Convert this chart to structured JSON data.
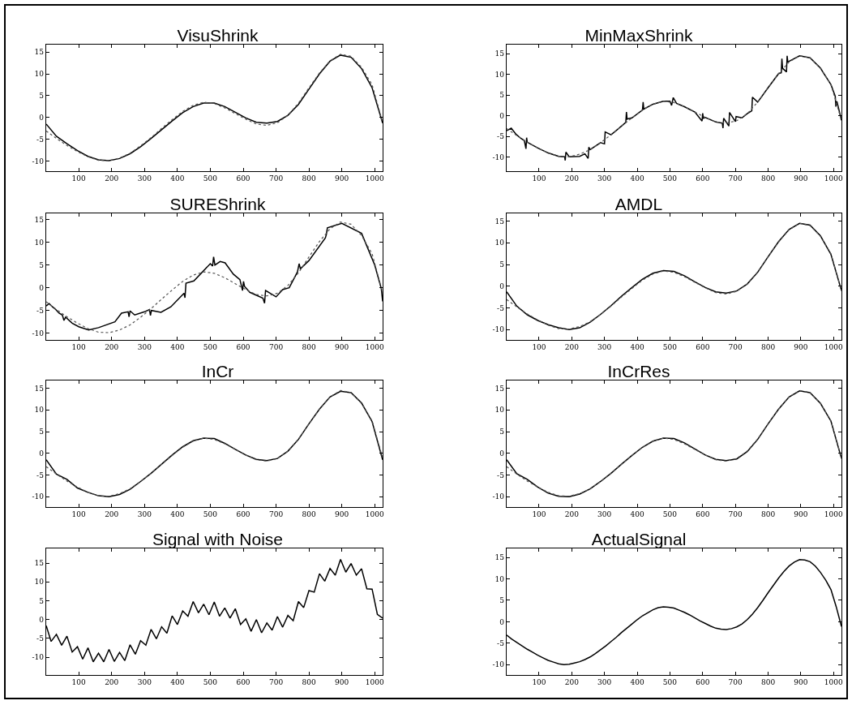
{
  "chart_data": [
    {
      "type": "line",
      "title": "VisuShrink",
      "xlim": [
        1,
        1024
      ],
      "xticks": [
        100,
        200,
        300,
        400,
        500,
        600,
        700,
        800,
        900,
        1000
      ],
      "ylim": [
        -12.3,
        16.7
      ],
      "yticks": [
        -10,
        -5,
        0,
        5,
        10,
        15
      ],
      "x": [
        1,
        32,
        64,
        96,
        128,
        160,
        192,
        224,
        256,
        288,
        320,
        352,
        384,
        416,
        448,
        480,
        512,
        544,
        576,
        608,
        640,
        672,
        704,
        736,
        768,
        800,
        832,
        864,
        896,
        928,
        960,
        992,
        1024
      ],
      "series": [
        {
          "color": "#000000",
          "line_style": "solid",
          "values": [
            -1.5,
            -4.3,
            -6.0,
            -7.6,
            -8.9,
            -9.7,
            -9.9,
            -9.4,
            -8.3,
            -6.7,
            -4.8,
            -2.8,
            -0.8,
            1.1,
            2.5,
            3.3,
            3.3,
            2.5,
            1.2,
            -0.1,
            -1.1,
            -1.3,
            -0.9,
            0.5,
            3.0,
            6.5,
            10.0,
            12.9,
            14.3,
            13.8,
            11.2,
            6.8,
            -1.3
          ]
        },
        {
          "color": "#555555",
          "line_style": "dotted",
          "values": [
            -3.1,
            -4.8,
            -6.4,
            -7.8,
            -9.0,
            -9.8,
            -9.9,
            -9.3,
            -8.2,
            -6.5,
            -4.6,
            -2.5,
            -0.5,
            1.4,
            2.8,
            3.5,
            3.2,
            2.2,
            0.9,
            -0.4,
            -1.5,
            -1.8,
            -1.2,
            0.5,
            3.3,
            6.8,
            10.2,
            13.0,
            14.5,
            14.0,
            11.5,
            7.5,
            -1.1
          ]
        }
      ]
    },
    {
      "type": "line",
      "title": "MinMaxShrink",
      "xlim": [
        1,
        1024
      ],
      "xticks": [
        100,
        200,
        300,
        400,
        500,
        600,
        700,
        800,
        900,
        1000
      ],
      "ylim": [
        -13.4,
        17.2
      ],
      "yticks": [
        -10,
        -5,
        0,
        5,
        10,
        15
      ],
      "x": [
        1,
        32,
        64,
        96,
        128,
        160,
        192,
        224,
        256,
        288,
        320,
        352,
        384,
        416,
        448,
        480,
        512,
        544,
        576,
        608,
        640,
        672,
        704,
        736,
        768,
        800,
        832,
        864,
        896,
        928,
        960,
        992,
        1024
      ],
      "series": [
        {
          "color": "#000000",
          "line_style": "solid",
          "x": [
            1,
            15,
            30,
            45,
            55,
            60,
            62,
            64,
            96,
            128,
            160,
            178,
            180,
            182,
            192,
            224,
            240,
            250,
            252,
            256,
            288,
            300,
            302,
            320,
            352,
            365,
            367,
            369,
            384,
            416,
            418,
            420,
            448,
            480,
            500,
            505,
            510,
            520,
            544,
            576,
            598,
            600,
            602,
            608,
            640,
            660,
            662,
            664,
            680,
            682,
            700,
            702,
            720,
            736,
            750,
            752,
            768,
            800,
            832,
            840,
            842,
            844,
            856,
            858,
            860,
            896,
            928,
            960,
            992,
            1005,
            1007,
            1010,
            1024
          ],
          "values": [
            -3.6,
            -3.0,
            -4.5,
            -5.5,
            -6.0,
            -8.0,
            -5.3,
            -6.4,
            -7.8,
            -9.0,
            -9.8,
            -9.9,
            -10.8,
            -8.8,
            -9.9,
            -9.8,
            -9.2,
            -10.3,
            -7.6,
            -8.2,
            -6.5,
            -6.8,
            -3.9,
            -4.6,
            -2.5,
            -1.6,
            0.9,
            -0.8,
            -0.5,
            1.4,
            3.3,
            1.6,
            2.8,
            3.5,
            3.5,
            2.5,
            4.4,
            3.0,
            2.2,
            0.9,
            -1.3,
            0.6,
            -0.6,
            -0.4,
            -1.5,
            -1.8,
            -3.0,
            -0.6,
            -2.5,
            0.8,
            -1.4,
            -0.2,
            -0.5,
            0.5,
            1.2,
            4.5,
            3.3,
            6.8,
            10.2,
            10.4,
            13.8,
            11.5,
            10.6,
            14.5,
            13.0,
            14.5,
            14.0,
            11.5,
            7.5,
            4.7,
            2.2,
            3.5,
            -1.1
          ]
        },
        {
          "color": "#555555",
          "line_style": "dotted",
          "values": [
            -3.1,
            -4.8,
            -6.4,
            -7.8,
            -9.0,
            -9.8,
            -9.9,
            -9.3,
            -8.2,
            -6.5,
            -4.6,
            -2.5,
            -0.5,
            1.4,
            2.8,
            3.5,
            3.2,
            2.2,
            0.9,
            -0.4,
            -1.5,
            -1.8,
            -1.2,
            0.5,
            3.3,
            6.8,
            10.2,
            13.0,
            14.5,
            14.0,
            11.5,
            7.5,
            -1.1
          ]
        }
      ]
    },
    {
      "type": "line",
      "title": "SUREShrink",
      "xlim": [
        1,
        1024
      ],
      "xticks": [
        100,
        200,
        300,
        400,
        500,
        600,
        700,
        800,
        900,
        1000
      ],
      "ylim": [
        -11.5,
        16.4
      ],
      "yticks": [
        -10,
        -5,
        0,
        5,
        10,
        15
      ],
      "x": [
        1,
        32,
        64,
        96,
        128,
        160,
        192,
        224,
        256,
        288,
        320,
        352,
        384,
        416,
        448,
        480,
        512,
        544,
        576,
        608,
        640,
        672,
        704,
        736,
        768,
        800,
        832,
        864,
        896,
        928,
        960,
        992,
        1024
      ],
      "series": [
        {
          "color": "#000000",
          "line_style": "solid",
          "x": [
            1,
            10,
            20,
            30,
            40,
            50,
            55,
            60,
            80,
            100,
            130,
            160,
            210,
            230,
            250,
            253,
            256,
            270,
            300,
            315,
            318,
            321,
            350,
            380,
            420,
            423,
            426,
            450,
            500,
            507,
            510,
            514,
            530,
            545,
            570,
            590,
            598,
            601,
            604,
            620,
            660,
            665,
            668,
            700,
            720,
            740,
            765,
            770,
            774,
            800,
            850,
            853,
            856,
            900,
            960,
            1000,
            1020,
            1024
          ],
          "values": [
            -4,
            -3.5,
            -4.2,
            -4.8,
            -5.6,
            -6,
            -7.2,
            -6.5,
            -7.8,
            -8.6,
            -9.3,
            -8.8,
            -7.5,
            -5.6,
            -5.3,
            -6.4,
            -5.1,
            -6.0,
            -5.3,
            -4.8,
            -6.1,
            -5.0,
            -5.4,
            -4.2,
            -1.2,
            -2.2,
            1.0,
            1.5,
            5.3,
            4.8,
            6.8,
            5.0,
            5.8,
            5.5,
            3.0,
            1.8,
            -0.6,
            1.4,
            0.3,
            -1.0,
            -2.3,
            -3.4,
            -0.6,
            -2.0,
            -0.4,
            0.0,
            3.5,
            5.3,
            4.2,
            6.0,
            11.0,
            11.8,
            13.2,
            14.2,
            12.0,
            5.0,
            -0.2,
            -3.0
          ]
        },
        {
          "color": "#555555",
          "line_style": "dotted",
          "values": [
            -3.1,
            -4.8,
            -6.4,
            -7.8,
            -9.0,
            -9.8,
            -9.9,
            -9.3,
            -8.2,
            -6.5,
            -4.6,
            -2.5,
            -0.5,
            1.4,
            2.8,
            3.5,
            3.2,
            2.2,
            0.9,
            -0.4,
            -1.5,
            -1.8,
            -1.2,
            0.5,
            3.3,
            6.8,
            10.2,
            13.0,
            14.5,
            14.0,
            11.5,
            7.5,
            -1.1
          ]
        }
      ]
    },
    {
      "type": "line",
      "title": "AMDL",
      "xlim": [
        1,
        1024
      ],
      "xticks": [
        100,
        200,
        300,
        400,
        500,
        600,
        700,
        800,
        900,
        1000
      ],
      "ylim": [
        -12.4,
        16.8
      ],
      "yticks": [
        -10,
        -5,
        0,
        5,
        10,
        15
      ],
      "x": [
        1,
        32,
        64,
        96,
        128,
        160,
        192,
        224,
        256,
        288,
        320,
        352,
        384,
        416,
        448,
        480,
        512,
        544,
        576,
        608,
        640,
        672,
        704,
        736,
        768,
        800,
        832,
        864,
        896,
        928,
        960,
        992,
        1024
      ],
      "series": [
        {
          "color": "#000000",
          "line_style": "solid",
          "values": [
            -1.3,
            -4.6,
            -6.6,
            -7.9,
            -8.9,
            -9.6,
            -10.0,
            -9.6,
            -8.3,
            -6.5,
            -4.5,
            -2.3,
            -0.3,
            1.6,
            3.0,
            3.6,
            3.4,
            2.4,
            1.0,
            -0.3,
            -1.3,
            -1.6,
            -1.1,
            0.5,
            3.2,
            6.8,
            10.3,
            13.1,
            14.5,
            14.1,
            11.6,
            7.3,
            -1.0
          ]
        },
        {
          "color": "#555555",
          "line_style": "dotted",
          "values": [
            -3.1,
            -4.8,
            -6.4,
            -7.8,
            -9.0,
            -9.8,
            -9.9,
            -9.3,
            -8.2,
            -6.5,
            -4.6,
            -2.5,
            -0.5,
            1.4,
            2.8,
            3.5,
            3.2,
            2.2,
            0.9,
            -0.4,
            -1.5,
            -1.8,
            -1.2,
            0.5,
            3.3,
            6.8,
            10.2,
            13.0,
            14.5,
            14.0,
            11.5,
            7.5,
            -1.1
          ]
        }
      ]
    },
    {
      "type": "line",
      "title": "InCr",
      "xlim": [
        1,
        1024
      ],
      "xticks": [
        100,
        200,
        300,
        400,
        500,
        600,
        700,
        800,
        900,
        1000
      ],
      "ylim": [
        -12.4,
        16.8
      ],
      "yticks": [
        -10,
        -5,
        0,
        5,
        10,
        15
      ],
      "x": [
        1,
        32,
        64,
        96,
        128,
        160,
        192,
        224,
        256,
        288,
        320,
        352,
        384,
        416,
        448,
        480,
        512,
        544,
        576,
        608,
        640,
        672,
        704,
        736,
        768,
        800,
        832,
        864,
        896,
        928,
        960,
        992,
        1024
      ],
      "series": [
        {
          "color": "#000000",
          "line_style": "solid",
          "values": [
            -1.5,
            -4.8,
            -6.0,
            -8.0,
            -9.0,
            -9.8,
            -10.0,
            -9.5,
            -8.3,
            -6.5,
            -4.6,
            -2.5,
            -0.4,
            1.5,
            2.9,
            3.5,
            3.4,
            2.3,
            0.9,
            -0.4,
            -1.4,
            -1.7,
            -1.2,
            0.5,
            3.2,
            6.8,
            10.2,
            13.0,
            14.3,
            14.0,
            11.6,
            7.3,
            -1.5
          ]
        },
        {
          "color": "#555555",
          "line_style": "dotted",
          "values": [
            -3.1,
            -4.8,
            -6.4,
            -7.8,
            -9.0,
            -9.8,
            -9.9,
            -9.3,
            -8.2,
            -6.5,
            -4.6,
            -2.5,
            -0.5,
            1.4,
            2.8,
            3.5,
            3.2,
            2.2,
            0.9,
            -0.4,
            -1.5,
            -1.8,
            -1.2,
            0.5,
            3.3,
            6.8,
            10.2,
            13.0,
            14.5,
            14.0,
            11.5,
            7.5,
            -1.1
          ]
        }
      ]
    },
    {
      "type": "line",
      "title": "InCrRes",
      "xlim": [
        1,
        1024
      ],
      "xticks": [
        100,
        200,
        300,
        400,
        500,
        600,
        700,
        800,
        900,
        1000
      ],
      "ylim": [
        -12.4,
        16.8
      ],
      "yticks": [
        -10,
        -5,
        0,
        5,
        10,
        15
      ],
      "x": [
        1,
        32,
        64,
        96,
        128,
        160,
        192,
        224,
        256,
        288,
        320,
        352,
        384,
        416,
        448,
        480,
        512,
        544,
        576,
        608,
        640,
        672,
        704,
        736,
        768,
        800,
        832,
        864,
        896,
        928,
        960,
        992,
        1024
      ],
      "series": [
        {
          "color": "#000000",
          "line_style": "solid",
          "values": [
            -1.5,
            -4.7,
            -6.0,
            -7.8,
            -9.2,
            -9.9,
            -10.0,
            -9.4,
            -8.2,
            -6.5,
            -4.6,
            -2.5,
            -0.5,
            1.4,
            2.8,
            3.5,
            3.4,
            2.4,
            1.0,
            -0.4,
            -1.4,
            -1.7,
            -1.3,
            0.4,
            3.2,
            6.8,
            10.2,
            13.0,
            14.4,
            14.0,
            11.5,
            7.4,
            -1.2
          ]
        },
        {
          "color": "#555555",
          "line_style": "dotted",
          "values": [
            -3.1,
            -4.8,
            -6.4,
            -7.8,
            -9.0,
            -9.8,
            -9.9,
            -9.3,
            -8.2,
            -6.5,
            -4.6,
            -2.5,
            -0.5,
            1.4,
            2.8,
            3.5,
            3.2,
            2.2,
            0.9,
            -0.4,
            -1.5,
            -1.8,
            -1.2,
            0.5,
            3.3,
            6.8,
            10.2,
            13.0,
            14.5,
            14.0,
            11.5,
            7.5,
            -1.1
          ]
        }
      ]
    },
    {
      "type": "line",
      "title": "Signal with Noise",
      "xlim": [
        1,
        1024
      ],
      "xticks": [
        100,
        200,
        300,
        400,
        500,
        600,
        700,
        800,
        900,
        1000
      ],
      "ylim": [
        -14.7,
        18.9
      ],
      "yticks": [
        -10,
        -5,
        0,
        5,
        10,
        15
      ],
      "x": [
        1,
        16,
        32,
        48,
        64,
        80,
        96,
        112,
        128,
        144,
        160,
        176,
        192,
        208,
        224,
        240,
        256,
        272,
        288,
        304,
        320,
        336,
        352,
        368,
        384,
        400,
        416,
        432,
        448,
        464,
        480,
        496,
        512,
        528,
        544,
        560,
        576,
        592,
        608,
        624,
        640,
        656,
        672,
        688,
        704,
        720,
        736,
        752,
        768,
        784,
        800,
        816,
        832,
        848,
        864,
        880,
        896,
        912,
        928,
        944,
        960,
        976,
        992,
        1008,
        1024
      ],
      "series": [
        {
          "color": "#000000",
          "line_style": "solid",
          "values": [
            -1.6,
            -5.8,
            -3.9,
            -6.8,
            -4.4,
            -8.6,
            -7.2,
            -10.5,
            -7.5,
            -11.2,
            -8.9,
            -11.2,
            -7.9,
            -11.1,
            -8.7,
            -10.9,
            -6.7,
            -9.2,
            -5.6,
            -6.8,
            -2.6,
            -5.1,
            -1.9,
            -3.6,
            1.0,
            -1.3,
            2.3,
            0.9,
            4.8,
            1.8,
            4.1,
            1.3,
            4.7,
            0.9,
            3.1,
            0.4,
            2.9,
            -1.3,
            0.2,
            -3.1,
            0,
            -3.5,
            -0.9,
            -2.8,
            0.8,
            -2.0,
            1.1,
            -0.3,
            4.8,
            3.2,
            7.7,
            7.3,
            12.2,
            10.2,
            13.6,
            11.8,
            16.0,
            12.6,
            14.9,
            11.8,
            13.5,
            8.2,
            8.1,
            1.4,
            0.4
          ]
        }
      ]
    },
    {
      "type": "line",
      "title": "ActualSignal",
      "xlim": [
        1,
        1024
      ],
      "xticks": [
        100,
        200,
        300,
        400,
        500,
        600,
        700,
        800,
        900,
        1000
      ],
      "ylim": [
        -12.4,
        17.1
      ],
      "yticks": [
        -10,
        -5,
        0,
        5,
        10,
        15
      ],
      "x": [
        1,
        16,
        32,
        48,
        64,
        80,
        96,
        112,
        128,
        144,
        160,
        176,
        192,
        208,
        224,
        240,
        256,
        272,
        288,
        304,
        320,
        336,
        352,
        368,
        384,
        400,
        416,
        432,
        448,
        464,
        480,
        496,
        512,
        528,
        544,
        560,
        576,
        592,
        608,
        624,
        640,
        656,
        672,
        688,
        704,
        720,
        736,
        752,
        768,
        784,
        800,
        816,
        832,
        848,
        864,
        880,
        896,
        912,
        928,
        944,
        960,
        976,
        992,
        1008,
        1024
      ],
      "series": [
        {
          "color": "#000000",
          "line_style": "solid",
          "values": [
            -3.1,
            -4.0,
            -4.8,
            -5.6,
            -6.4,
            -7.1,
            -7.8,
            -8.4,
            -9.0,
            -9.4,
            -9.8,
            -10.0,
            -9.9,
            -9.6,
            -9.3,
            -8.8,
            -8.2,
            -7.4,
            -6.5,
            -5.6,
            -4.6,
            -3.6,
            -2.5,
            -1.5,
            -0.5,
            0.5,
            1.4,
            2.1,
            2.8,
            3.3,
            3.5,
            3.4,
            3.2,
            2.7,
            2.2,
            1.6,
            0.9,
            0.2,
            -0.4,
            -1.0,
            -1.5,
            -1.7,
            -1.8,
            -1.6,
            -1.2,
            -0.5,
            0.5,
            1.8,
            3.3,
            5.0,
            6.8,
            8.5,
            10.2,
            11.7,
            13.0,
            13.9,
            14.5,
            14.4,
            14.0,
            13.0,
            11.5,
            9.7,
            7.5,
            3.5,
            -1.1
          ]
        }
      ]
    }
  ]
}
